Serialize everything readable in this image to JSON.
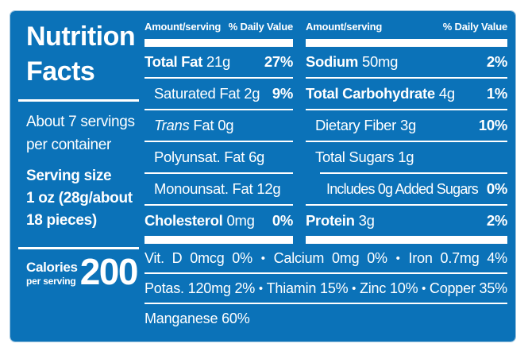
{
  "colors": {
    "panel_blue": "#0b72b8",
    "text_white": "#ffffff"
  },
  "left": {
    "title_line1": "Nutrition",
    "title_line2": "Facts",
    "servings_line1": "About 7 servings",
    "servings_line2": "per container",
    "serving_size_label": "Serving size",
    "serving_size_line1": "1 oz (28g/about",
    "serving_size_line2": "18 pieces)",
    "calories_label": "Calories",
    "calories_sublabel": "per serving",
    "calories_value": "200"
  },
  "columns": [
    {
      "header_amount": "Amount/serving",
      "header_dv": "% Daily Value",
      "rows": [
        {
          "italic": "",
          "name": "Total Fat",
          "amount": "21g",
          "dv": "27%"
        },
        {
          "italic": "",
          "name": "Saturated Fat",
          "amount": "2g",
          "dv": "9%"
        },
        {
          "italic": "Trans",
          "name": "Fat",
          "amount": "0g",
          "dv": ""
        },
        {
          "italic": "",
          "name": "Polyunsat. Fat",
          "amount": "6g",
          "dv": ""
        },
        {
          "italic": "",
          "name": "Monounsat. Fat",
          "amount": "12g",
          "dv": ""
        },
        {
          "italic": "",
          "name": "Cholesterol",
          "amount": "0mg",
          "dv": "0%"
        }
      ]
    },
    {
      "header_amount": "Amount/serving",
      "header_dv": "% Daily Value",
      "rows": [
        {
          "italic": "",
          "name": "Sodium",
          "amount": "50mg",
          "dv": "2%"
        },
        {
          "italic": "",
          "name": "Total Carbohydrate",
          "amount": "4g",
          "dv": "1%"
        },
        {
          "italic": "",
          "name": "Dietary Fiber",
          "amount": "3g",
          "dv": "10%"
        },
        {
          "italic": "",
          "name": "Total Sugars",
          "amount": "1g",
          "dv": ""
        },
        {
          "italic": "",
          "name": "Includes 0g Added Sugars",
          "amount": "",
          "dv": "0%"
        },
        {
          "italic": "",
          "name": "Protein",
          "amount": "3g",
          "dv": "2%"
        }
      ]
    }
  ],
  "micronutrients": {
    "bullet": "•",
    "row1": [
      "Vit. D 0mcg 0%",
      "Calcium 0mg 0%",
      "Iron 0.7mg 4%"
    ],
    "row2": [
      "Potas. 120mg 2%",
      "Thiamin 15%",
      "Zinc 10%",
      "Copper 35%"
    ],
    "row3": "Manganese 60%"
  }
}
